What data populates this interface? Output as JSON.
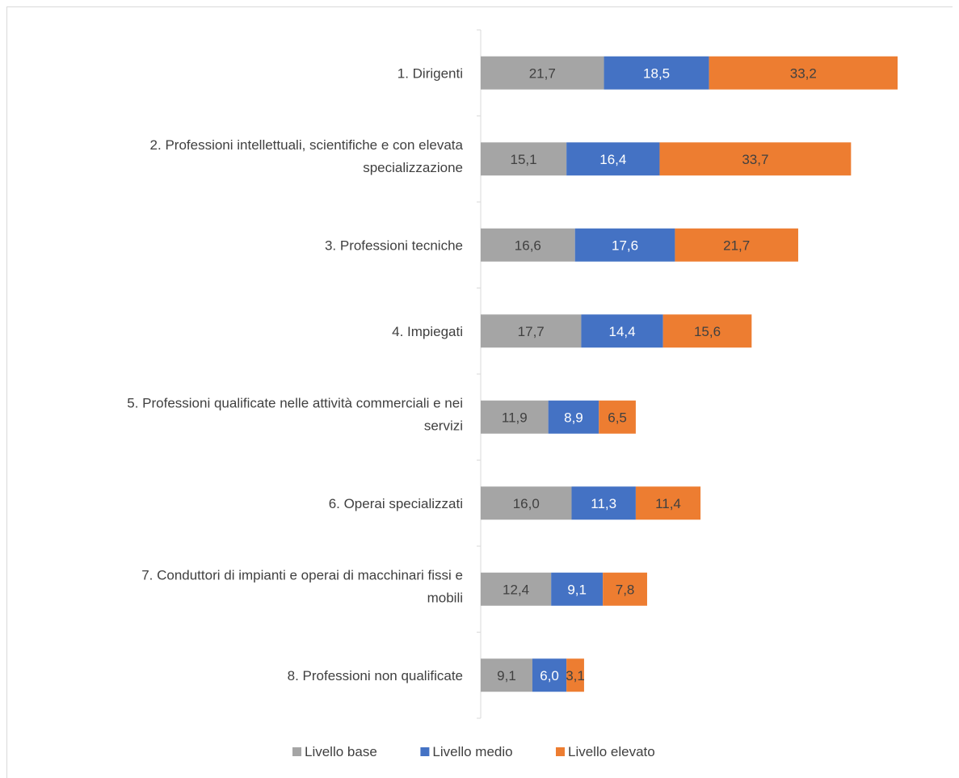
{
  "chart_data": {
    "type": "bar",
    "orientation": "horizontal",
    "stacked": true,
    "categories": [
      [
        "1. Dirigenti"
      ],
      [
        "2. Professioni intellettuali, scientifiche e con elevata",
        "specializzazione"
      ],
      [
        "3. Professioni tecniche"
      ],
      [
        "4. Impiegati"
      ],
      [
        "5. Professioni qualificate nelle attività commerciali e nei",
        "servizi"
      ],
      [
        "6. Operai specializzati"
      ],
      [
        "7. Conduttori di impianti e operai di macchinari fissi e",
        "mobili"
      ],
      [
        "8. Professioni non qualificate"
      ]
    ],
    "series": [
      {
        "name": "Livello base",
        "color": "#a5a5a5",
        "label_color": "#404040",
        "values": [
          21.7,
          15.1,
          16.6,
          17.7,
          11.9,
          16.0,
          12.4,
          9.1
        ],
        "labels": [
          "21,7",
          "15,1",
          "16,6",
          "17,7",
          "11,9",
          "16,0",
          "12,4",
          "9,1"
        ]
      },
      {
        "name": "Livello medio",
        "color": "#4472c4",
        "label_color": "#ffffff",
        "values": [
          18.5,
          16.4,
          17.6,
          14.4,
          8.9,
          11.3,
          9.1,
          6.0
        ],
        "labels": [
          "18,5",
          "16,4",
          "17,6",
          "14,4",
          "8,9",
          "11,3",
          "9,1",
          "6,0"
        ]
      },
      {
        "name": "Livello elevato",
        "color": "#ed7d31",
        "label_color": "#404040",
        "values": [
          33.2,
          33.7,
          21.7,
          15.6,
          6.5,
          11.4,
          7.8,
          3.1
        ],
        "labels": [
          "33,2",
          "33,7",
          "21,7",
          "15,6",
          "6,5",
          "11,4",
          "7,8",
          "3,1"
        ]
      }
    ],
    "title": "",
    "xlabel": "",
    "ylabel": "",
    "grid": false,
    "legend": "bottom"
  }
}
